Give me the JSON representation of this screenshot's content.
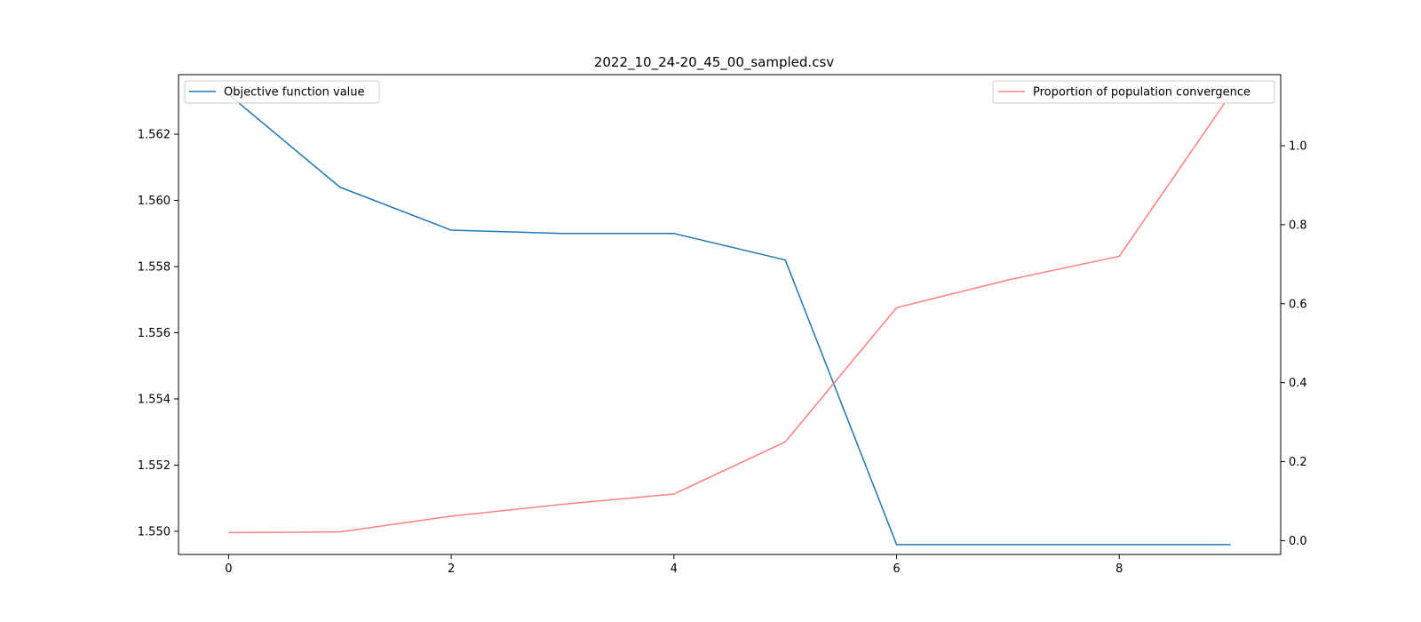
{
  "chart_data": {
    "type": "line",
    "title": "2022_10_24-20_45_00_sampled.csv",
    "xlabel": "",
    "ylabel": "",
    "y2label": "",
    "x": [
      0,
      1,
      2,
      3,
      4,
      5,
      6,
      7,
      8,
      9
    ],
    "xlim": [
      -0.45,
      9.45
    ],
    "x_ticks": [
      0,
      2,
      4,
      6,
      8
    ],
    "x_tick_labels": [
      "0",
      "2",
      "4",
      "6",
      "8"
    ],
    "ylim": [
      1.5493,
      1.5638
    ],
    "y_ticks": [
      1.55,
      1.552,
      1.554,
      1.556,
      1.558,
      1.56,
      1.562
    ],
    "y_tick_labels": [
      "1.550",
      "1.552",
      "1.554",
      "1.556",
      "1.558",
      "1.560",
      "1.562"
    ],
    "y2lim": [
      -0.035,
      1.18
    ],
    "y2_ticks": [
      0.0,
      0.2,
      0.4,
      0.6,
      0.8,
      1.0
    ],
    "y2_tick_labels": [
      "0.0",
      "0.2",
      "0.4",
      "0.6",
      "0.8",
      "1.0"
    ],
    "grid": false,
    "series": [
      {
        "name": "Objective function value",
        "axis": "left",
        "color": "#1f77b4",
        "legend_position": "upper-left",
        "values": [
          1.5632,
          1.5604,
          1.5591,
          1.559,
          1.559,
          1.5582,
          1.5496,
          1.5496,
          1.5496,
          1.5496
        ]
      },
      {
        "name": "Proportion of population convergence",
        "axis": "right",
        "color": "#ff7f7f",
        "legend_position": "upper-right",
        "values": [
          0.02,
          0.022,
          0.062,
          0.092,
          0.118,
          0.25,
          0.59,
          0.66,
          0.72,
          1.13
        ]
      }
    ]
  }
}
